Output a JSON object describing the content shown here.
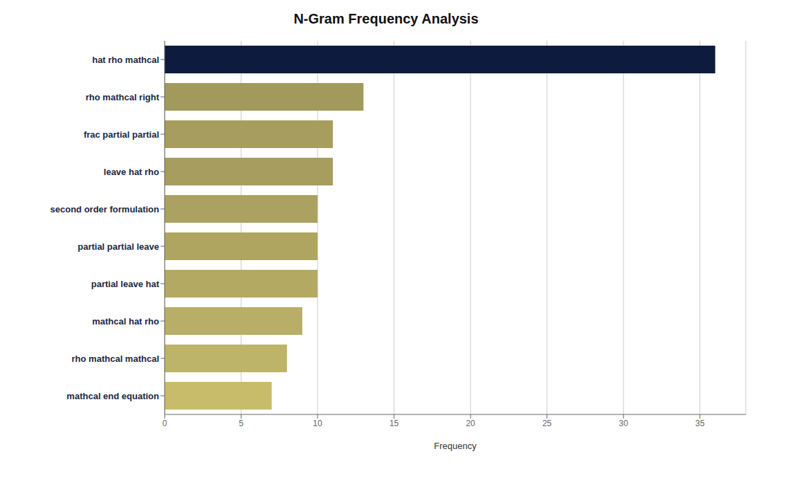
{
  "chart_data": {
    "type": "bar",
    "title": "N-Gram Frequency Analysis",
    "xlabel": "Frequency",
    "orientation": "horizontal",
    "categories": [
      "mathcal end equation",
      "rho mathcal mathcal",
      "mathcal hat rho",
      "partial leave hat",
      "partial partial leave",
      "second order formulation",
      "leave hat rho",
      "frac partial partial",
      "rho mathcal right",
      "hat rho mathcal"
    ],
    "values": [
      7,
      8,
      9,
      10,
      10,
      10,
      11,
      11,
      13,
      36
    ],
    "colors": [
      "#c8bc6a",
      "#bdb46a",
      "#b8ae68",
      "#b3a963",
      "#afa560",
      "#aba160",
      "#a69d5e",
      "#a69d5e",
      "#a29a5c",
      "#0d1b3e"
    ],
    "xlim": [
      0,
      38
    ],
    "xticks": [
      0,
      5,
      10,
      15,
      20,
      25,
      30,
      35
    ],
    "grid": true
  }
}
